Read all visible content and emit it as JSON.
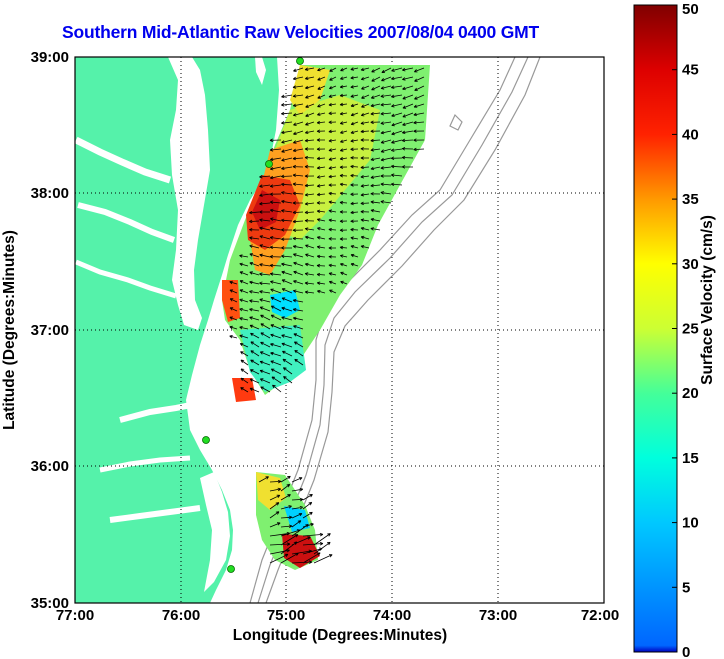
{
  "title": "Southern Mid-Atlantic Raw Velocities 2007/08/04 0400 GMT",
  "x_axis": {
    "label": "Longitude (Degrees:Minutes)",
    "ticks": [
      "77:00",
      "76:00",
      "75:00",
      "74:00",
      "73:00",
      "72:00"
    ],
    "range": [
      -77,
      -72
    ]
  },
  "y_axis": {
    "label": "Latitude (Degrees:Minutes)",
    "ticks": [
      "35:00",
      "36:00",
      "37:00",
      "38:00",
      "39:00"
    ],
    "range": [
      35,
      39
    ]
  },
  "colorbar": {
    "label": "Surface Velocity (cm/s)",
    "ticks": [
      "0",
      "5",
      "10",
      "15",
      "20",
      "25",
      "30",
      "35",
      "40",
      "45",
      "50"
    ],
    "range": [
      0,
      50
    ],
    "colormap": "jet"
  },
  "colors": {
    "land": "#55f2aa",
    "water": "#ffffff",
    "title": "#0000ee",
    "station": "#22dd22",
    "bathymetry": "#999999"
  }
}
